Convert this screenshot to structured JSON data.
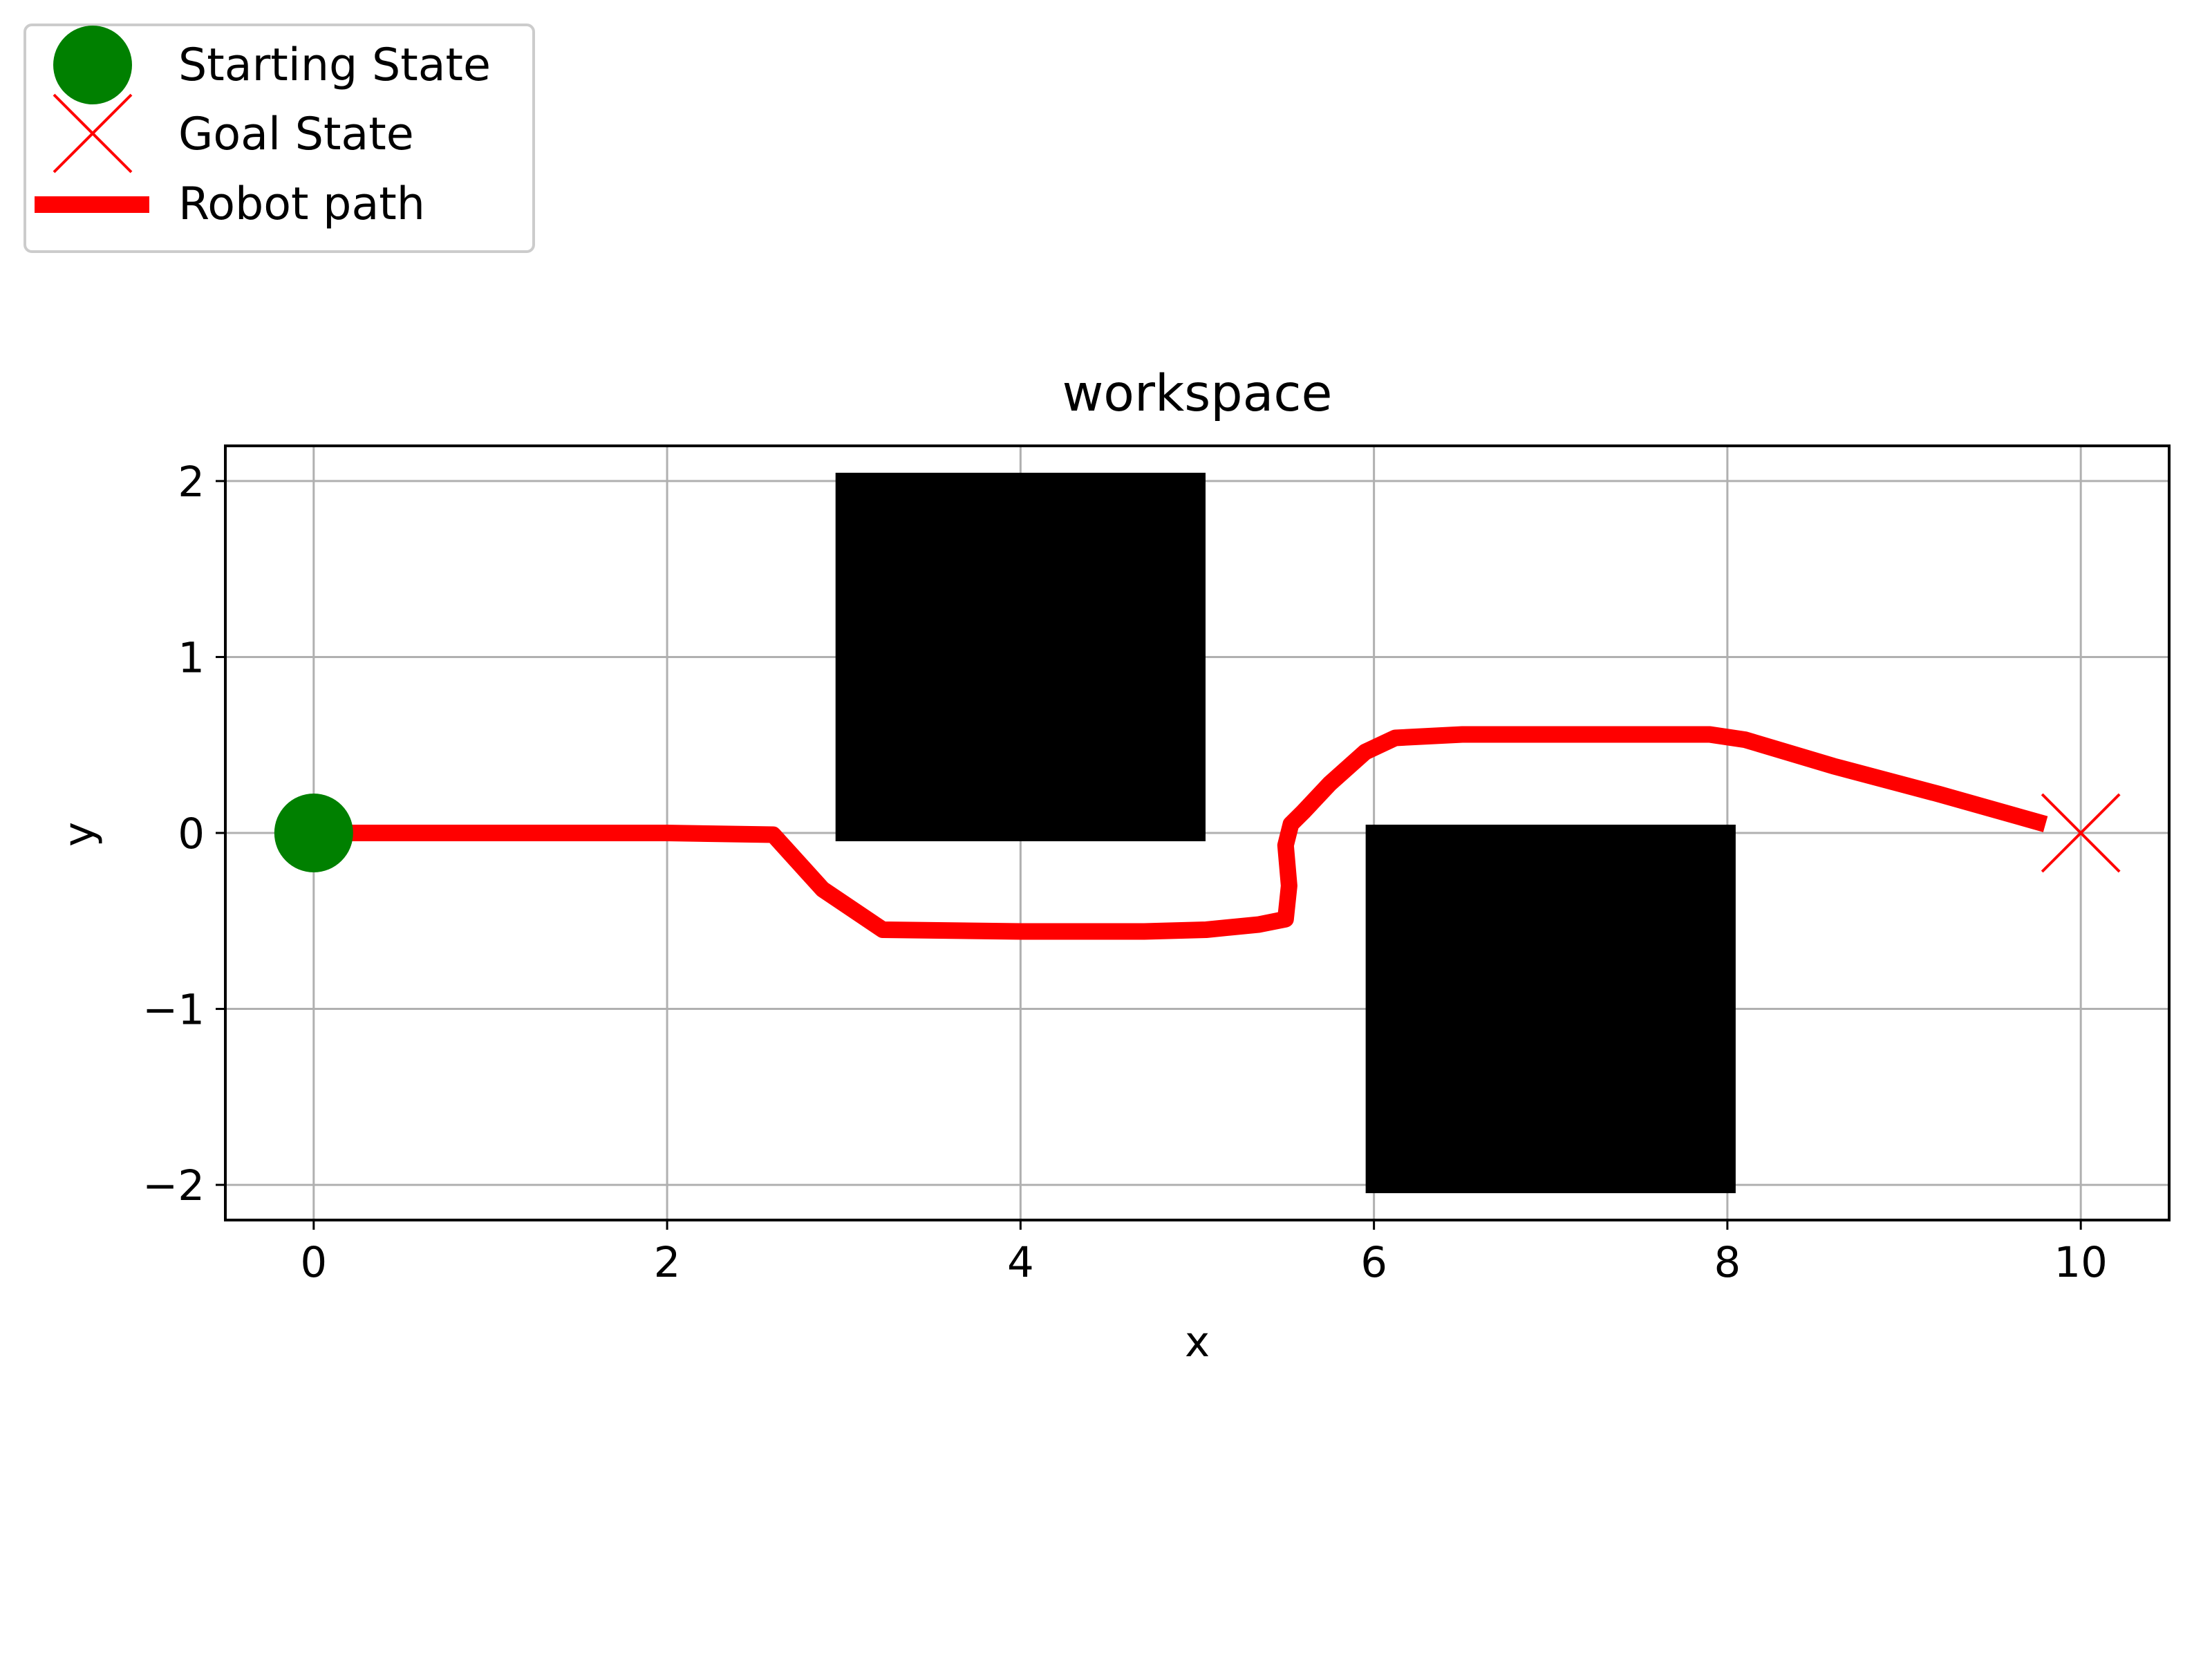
{
  "chart_data": {
    "type": "line",
    "title": "workspace",
    "xlabel": "x",
    "ylabel": "y",
    "xlim": [
      -0.5,
      10.5
    ],
    "ylim": [
      -2.2,
      2.2
    ],
    "x_ticks": [
      0,
      2,
      4,
      6,
      8,
      10
    ],
    "y_ticks": [
      -2,
      -1,
      0,
      1,
      2
    ],
    "x_tick_labels": [
      "0",
      "2",
      "4",
      "6",
      "8",
      "10"
    ],
    "y_tick_labels": [
      "−2",
      "−1",
      "0",
      "1",
      "2"
    ],
    "grid": true,
    "legend_placement": "upper-left, outside plot",
    "legend": [
      {
        "label": "Starting State",
        "marker": "circle",
        "color": "#008000"
      },
      {
        "label": "Goal State",
        "marker": "x",
        "color": "#ff0000"
      },
      {
        "label": "Robot path",
        "marker": "line",
        "color": "#ff0000"
      }
    ],
    "obstacles": [
      {
        "x": [
          3.0,
          5.0
        ],
        "y": [
          0.0,
          2.0
        ],
        "color": "#000000"
      },
      {
        "x": [
          6.0,
          8.0
        ],
        "y": [
          -2.0,
          0.0
        ],
        "color": "#000000"
      }
    ],
    "start": {
      "x": 0,
      "y": 0,
      "color": "#008000"
    },
    "goal": {
      "x": 10,
      "y": 0,
      "color": "#ff0000"
    },
    "series": [
      {
        "name": "Robot path",
        "color": "#ff0000",
        "x": [
          0.0,
          1.0,
          2.0,
          2.6,
          2.88,
          3.22,
          4.0,
          4.7,
          5.05,
          5.35,
          5.5,
          5.52,
          5.5,
          5.53,
          5.6,
          5.75,
          5.95,
          6.12,
          6.5,
          7.0,
          7.5,
          7.9,
          8.1,
          8.6,
          9.2,
          9.8
        ],
        "y": [
          0.0,
          0.0,
          0.0,
          -0.01,
          -0.32,
          -0.55,
          -0.56,
          -0.56,
          -0.55,
          -0.52,
          -0.49,
          -0.3,
          -0.07,
          0.05,
          0.12,
          0.28,
          0.46,
          0.54,
          0.56,
          0.56,
          0.56,
          0.56,
          0.53,
          0.38,
          0.22,
          0.05
        ]
      }
    ]
  }
}
